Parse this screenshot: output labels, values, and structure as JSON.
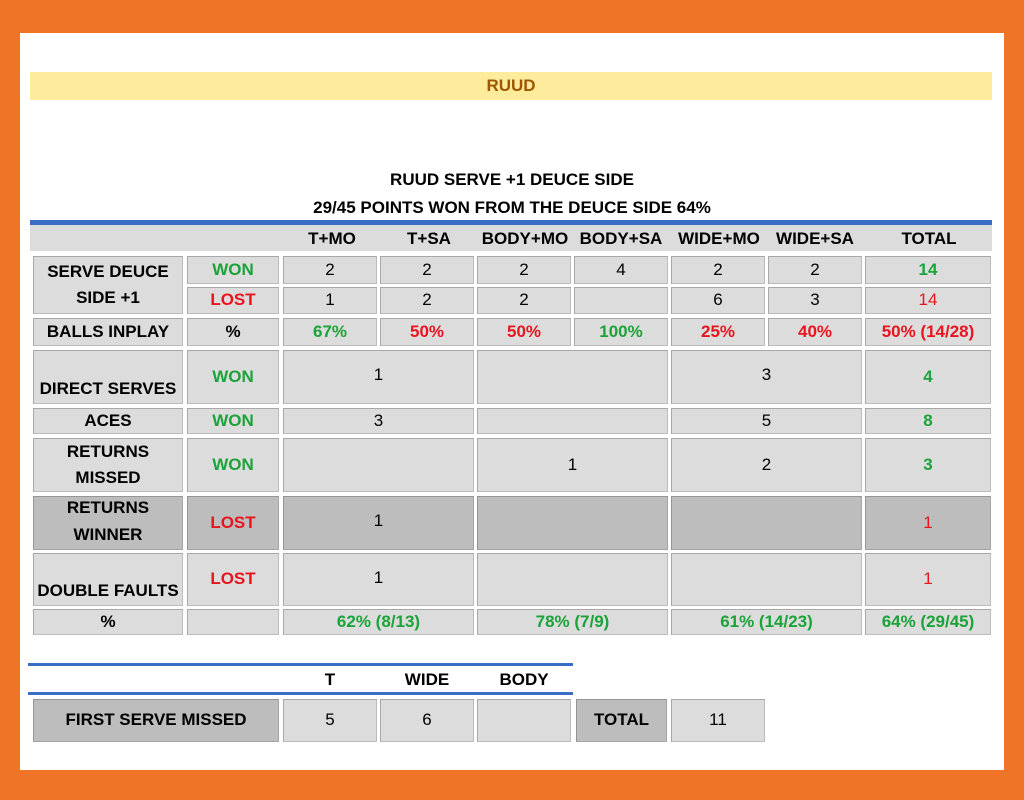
{
  "header": {
    "player": "RUUD"
  },
  "titles": {
    "line1": "RUUD SERVE +1 DEUCE SIDE",
    "line2": "29/45 POINTS WON FROM THE DEUCE SIDE 64%"
  },
  "columns": [
    "T+MO",
    "T+SA",
    "BODY+MO",
    "BODY+SA",
    "WIDE+MO",
    "WIDE+SA",
    "TOTAL"
  ],
  "serve_deuce": {
    "label_line1": "SERVE DEUCE",
    "label_line2": "SIDE +1",
    "won_label": "WON",
    "lost_label": "LOST",
    "won": [
      "2",
      "2",
      "2",
      "4",
      "2",
      "2",
      "14"
    ],
    "lost": [
      "1",
      "2",
      "2",
      "",
      "6",
      "3",
      "14"
    ]
  },
  "balls_inplay": {
    "label": "BALLS INPLAY",
    "sub": "%",
    "values": [
      "67%",
      "50%",
      "50%",
      "100%",
      "25%",
      "40%",
      "50% (14/28)"
    ]
  },
  "direct_serves": {
    "label": "DIRECT SERVES",
    "result": "WON",
    "t": "1",
    "body": "",
    "wide": "3",
    "total": "4"
  },
  "aces": {
    "label": "ACES",
    "result": "WON",
    "t": "3",
    "body": "",
    "wide": "5",
    "total": "8"
  },
  "returns_missed": {
    "label_line1": "RETURNS",
    "label_line2": "MISSED",
    "result": "WON",
    "t": "",
    "body": "1",
    "wide": "2",
    "total": "3"
  },
  "returns_winner": {
    "label_line1": "RETURNS",
    "label_line2": "WINNER",
    "result": "LOST",
    "t": "1",
    "body": "",
    "wide": "",
    "total": "1"
  },
  "double_faults": {
    "label": "DOUBLE FAULTS",
    "result": "LOST",
    "t": "1",
    "body": "",
    "wide": "",
    "total": "1"
  },
  "percent_row": {
    "label": "%",
    "t": "62% (8/13)",
    "body": "78% (7/9)",
    "wide": "61% (14/23)",
    "total": "64% (29/45)"
  },
  "first_serve": {
    "headers": [
      "T",
      "WIDE",
      "BODY"
    ],
    "label": "FIRST SERVE MISSED",
    "values": [
      "5",
      "6",
      ""
    ],
    "total_label": "TOTAL",
    "total": "11"
  },
  "colors": {
    "background": "#f07428",
    "won": "#1aa338",
    "lost": "#e8141e",
    "banner": "#ffeb9c",
    "accent": "#3a6ec4"
  }
}
